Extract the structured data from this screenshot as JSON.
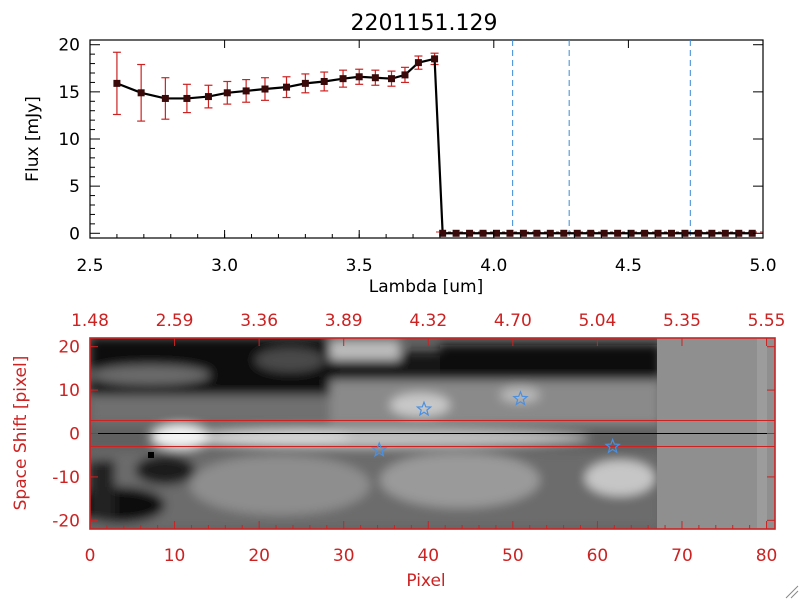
{
  "chart_data": [
    {
      "type": "line",
      "title": "2201151.129",
      "xlabel": "Lambda [um]",
      "ylabel": "Flux [mJy]",
      "xlim": [
        2.5,
        5.0
      ],
      "ylim": [
        -0.5,
        20.5
      ],
      "xticks": [
        "2.5",
        "3.0",
        "3.5",
        "4.0",
        "4.5",
        "5.0"
      ],
      "yticks": [
        "0",
        "5",
        "10",
        "15",
        "20"
      ],
      "series": [
        {
          "name": "flux",
          "x": [
            2.6,
            2.69,
            2.78,
            2.86,
            2.94,
            3.01,
            3.08,
            3.15,
            3.23,
            3.3,
            3.37,
            3.44,
            3.5,
            3.56,
            3.62,
            3.67,
            3.72,
            3.78,
            3.81,
            3.86,
            3.91,
            3.96,
            4.01,
            4.06,
            4.11,
            4.16,
            4.21,
            4.26,
            4.31,
            4.36,
            4.41,
            4.46,
            4.51,
            4.56,
            4.61,
            4.66,
            4.71,
            4.76,
            4.81,
            4.86,
            4.91,
            4.96
          ],
          "values": [
            15.9,
            14.9,
            14.3,
            14.3,
            14.5,
            14.9,
            15.1,
            15.3,
            15.5,
            15.9,
            16.1,
            16.4,
            16.6,
            16.5,
            16.4,
            16.8,
            18.1,
            18.5,
            0,
            0,
            0,
            0,
            0,
            0,
            0,
            0,
            0,
            0,
            0,
            0,
            0,
            0,
            0,
            0,
            0,
            0,
            0,
            0,
            0,
            0,
            0,
            0
          ],
          "errors": [
            3.3,
            3.0,
            2.2,
            1.5,
            1.2,
            1.2,
            1.2,
            1.2,
            1.1,
            1.0,
            1.0,
            0.9,
            0.8,
            0.8,
            0.8,
            0.8,
            0.7,
            0.6,
            0,
            0,
            0,
            0,
            0,
            0,
            0,
            0,
            0,
            0,
            0,
            0,
            0,
            0,
            0,
            0,
            0,
            0,
            0,
            0,
            0,
            0,
            0,
            0
          ]
        }
      ],
      "vertical_markers": [
        4.07,
        4.28,
        4.73
      ],
      "colors": {
        "line": "#000000",
        "marker": "#3a0a0a",
        "error": "#cc2222",
        "vmarker": "#3a8ad8"
      }
    },
    {
      "type": "heatmap",
      "xlabel": "Pixel",
      "ylabel": "Space Shift [pixel]",
      "xlim": [
        0,
        81
      ],
      "ylim": [
        -22,
        22
      ],
      "xticks": [
        "0",
        "10",
        "20",
        "30",
        "40",
        "50",
        "60",
        "70",
        "80"
      ],
      "yticks": [
        "20",
        "10",
        "0",
        "-10",
        "-20"
      ],
      "top_axis_ticks": [
        "1.48",
        "2.59",
        "3.36",
        "3.89",
        "4.32",
        "4.70",
        "5.04",
        "5.35",
        "5.55"
      ],
      "horizontal_lines": [
        3,
        0,
        -3
      ],
      "star_markers": [
        {
          "x": 34.2,
          "y": -3.8
        },
        {
          "x": 39.5,
          "y": 5.6
        },
        {
          "x": 50.9,
          "y": 8.0
        },
        {
          "x": 61.8,
          "y": -3.0
        }
      ],
      "colors": {
        "frame": "#cc2222",
        "star": "#4a90e2",
        "center_line": "#000000",
        "guide_lines": "#cc2222",
        "flat_region": "#8f8f8f"
      }
    }
  ]
}
